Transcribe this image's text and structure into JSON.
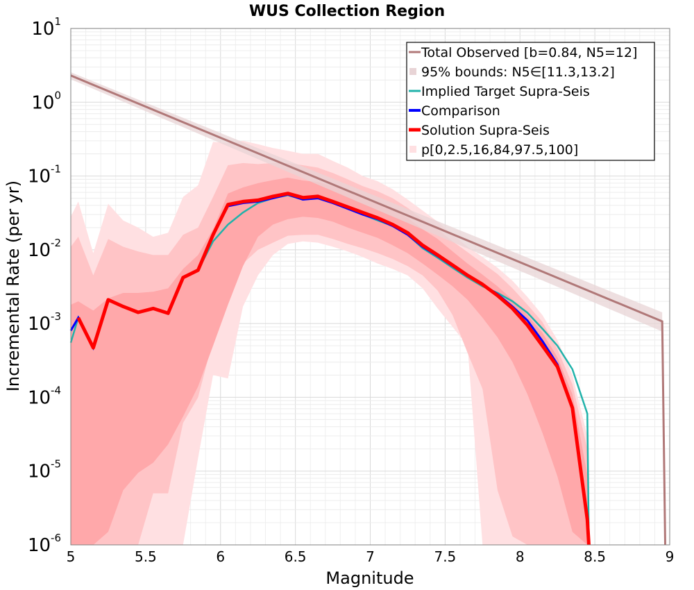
{
  "chart_data": {
    "type": "line",
    "title": "WUS Collection Region",
    "xlabel": "Magnitude",
    "ylabel": "Incremental Rate (per yr)",
    "xlim": [
      5,
      9
    ],
    "ylim": [
      1e-06,
      10
    ],
    "yscale": "log",
    "grid": true,
    "legend_position": "top-right",
    "x_ticks": [
      "5",
      "5.5",
      "6",
      "6.5",
      "7",
      "7.5",
      "8",
      "8.5",
      "9"
    ],
    "y_ticks": [
      {
        "base": "10",
        "exp": "-6"
      },
      {
        "base": "10",
        "exp": "-5"
      },
      {
        "base": "10",
        "exp": "-4"
      },
      {
        "base": "10",
        "exp": "-3"
      },
      {
        "base": "10",
        "exp": "-2"
      },
      {
        "base": "10",
        "exp": "-1"
      },
      {
        "base": "10",
        "exp": "0"
      },
      {
        "base": "10",
        "exp": "1"
      }
    ],
    "colors": {
      "observed": "#b07878",
      "observed_band": "#e8d4d6",
      "target": "#20b2aa",
      "comparison": "#0000ff",
      "solution": "#ff0000",
      "band_outer": "#ffe0e2",
      "band_mid": "#ffc4c6",
      "band_inner": "#ffa8aa"
    },
    "legend": [
      {
        "label": "Total Observed [b=0.84, N5=12]",
        "kind": "line",
        "key": "observed"
      },
      {
        "label": "95% bounds: N5∈[11.3,13.2]",
        "kind": "band",
        "key": "observed_band"
      },
      {
        "label": "Implied Target Supra-Seis",
        "kind": "line",
        "key": "target"
      },
      {
        "label": "Comparison",
        "kind": "line",
        "key": "comparison"
      },
      {
        "label": "Solution Supra-Seis",
        "kind": "line",
        "key": "solution"
      },
      {
        "label": "p[0,2.5,16,84,97.5,100]",
        "kind": "band",
        "key": "band_outer"
      }
    ],
    "series": [
      {
        "name": "Total Observed [b=0.84, N5=12]",
        "x": [
          5.0,
          8.95,
          8.95,
          8.97
        ],
        "y": [
          2.3,
          0.00107,
          0.00107,
          1e-06
        ]
      },
      {
        "name": "95% bounds: N5∈[11.3,13.2]",
        "x": [
          5.0,
          8.95
        ],
        "lower": [
          2.05,
          0.00078
        ],
        "upper": [
          2.55,
          0.00142
        ]
      },
      {
        "name": "Implied Target Supra-Seis",
        "x": [
          5.0,
          5.05,
          5.15,
          5.25,
          5.35,
          5.45,
          5.55,
          5.65,
          5.75,
          5.85,
          5.95,
          6.05,
          6.15,
          6.25,
          6.35,
          6.45,
          6.55,
          6.65,
          6.75,
          6.85,
          6.95,
          7.05,
          7.15,
          7.25,
          7.35,
          7.45,
          7.55,
          7.65,
          7.75,
          7.85,
          7.95,
          8.05,
          8.15,
          8.25,
          8.35,
          8.45,
          8.46
        ],
        "y": [
          0.00055,
          0.0012,
          0.00047,
          0.0021,
          0.0017,
          0.00142,
          0.0016,
          0.00138,
          0.0042,
          0.0053,
          0.013,
          0.022,
          0.032,
          0.043,
          0.05,
          0.055,
          0.048,
          0.05,
          0.043,
          0.036,
          0.03,
          0.025,
          0.021,
          0.016,
          0.0105,
          0.0078,
          0.0057,
          0.0042,
          0.0032,
          0.0026,
          0.002,
          0.0014,
          0.00085,
          0.0005,
          0.00024,
          6e-05,
          1e-06
        ]
      },
      {
        "name": "Comparison",
        "x": [
          5.0,
          5.05,
          5.15,
          5.25,
          5.35,
          5.45,
          5.55,
          5.65,
          5.75,
          5.85,
          5.95,
          6.05,
          6.15,
          6.25,
          6.35,
          6.45,
          6.55,
          6.65,
          6.75,
          6.85,
          6.95,
          7.05,
          7.15,
          7.25,
          7.35,
          7.45,
          7.55,
          7.65,
          7.75,
          7.85,
          7.95,
          8.05,
          8.15,
          8.25,
          8.35,
          8.45,
          8.46
        ],
        "y": [
          0.0008,
          0.0012,
          0.00047,
          0.0021,
          0.0017,
          0.00142,
          0.0016,
          0.00138,
          0.0042,
          0.0053,
          0.016,
          0.039,
          0.043,
          0.045,
          0.05,
          0.056,
          0.048,
          0.05,
          0.043,
          0.036,
          0.03,
          0.026,
          0.021,
          0.016,
          0.011,
          0.0082,
          0.006,
          0.0044,
          0.0034,
          0.0025,
          0.0017,
          0.0011,
          0.00058,
          0.00028,
          7.5e-05,
          2.2e-06,
          1e-06
        ]
      },
      {
        "name": "Solution Supra-Seis",
        "x": [
          5.05,
          5.15,
          5.25,
          5.35,
          5.45,
          5.55,
          5.65,
          5.75,
          5.85,
          5.95,
          6.05,
          6.15,
          6.25,
          6.35,
          6.45,
          6.55,
          6.65,
          6.75,
          6.85,
          6.95,
          7.05,
          7.15,
          7.25,
          7.35,
          7.45,
          7.55,
          7.65,
          7.75,
          7.85,
          7.95,
          8.05,
          8.15,
          8.25,
          8.35,
          8.45,
          8.46
        ],
        "y": [
          0.0012,
          0.00047,
          0.0021,
          0.0017,
          0.00142,
          0.0016,
          0.00138,
          0.0042,
          0.0053,
          0.016,
          0.041,
          0.045,
          0.047,
          0.053,
          0.058,
          0.051,
          0.053,
          0.045,
          0.038,
          0.032,
          0.027,
          0.022,
          0.017,
          0.0115,
          0.0085,
          0.0062,
          0.0045,
          0.0034,
          0.0024,
          0.0016,
          0.00095,
          0.0005,
          0.00026,
          7.2e-05,
          2.2e-06,
          1e-06
        ]
      },
      {
        "name": "p[0,2.5,16,84,97.5,100]",
        "x": [
          5.0,
          5.05,
          5.15,
          5.25,
          5.35,
          5.45,
          5.55,
          5.65,
          5.75,
          5.85,
          5.95,
          6.05,
          6.15,
          6.25,
          6.35,
          6.45,
          6.55,
          6.65,
          6.75,
          6.85,
          6.95,
          7.05,
          7.15,
          7.25,
          7.35,
          7.45,
          7.55,
          7.65,
          7.75,
          7.85,
          7.95,
          8.05,
          8.15,
          8.25,
          8.35,
          8.45
        ],
        "p0": [
          1e-06,
          1e-06,
          1e-06,
          1e-06,
          1e-06,
          1e-06,
          1e-06,
          1e-06,
          1e-06,
          1.5e-05,
          0.0002,
          0.00018,
          0.0017,
          0.0045,
          0.0085,
          0.012,
          0.013,
          0.0125,
          0.011,
          0.0095,
          0.008,
          0.0065,
          0.0055,
          0.0045,
          0.003,
          0.0016,
          0.0009,
          0.0005,
          1e-06,
          1e-06,
          1e-06,
          1e-06,
          1e-06,
          1e-06,
          1e-06,
          1e-06
        ],
        "p2_5": [
          1e-06,
          1e-06,
          1e-06,
          1e-06,
          1e-06,
          1e-06,
          5e-06,
          5e-06,
          4.5e-05,
          0.0001,
          0.0006,
          0.0025,
          0.0065,
          0.01,
          0.0125,
          0.0155,
          0.016,
          0.016,
          0.014,
          0.012,
          0.0105,
          0.009,
          0.0075,
          0.006,
          0.0045,
          0.0028,
          0.0013,
          0.0004,
          0.00013,
          5.5e-06,
          1.3e-06,
          1e-06,
          1e-06,
          1e-06,
          1e-06,
          1e-06
        ],
        "p16": [
          1e-06,
          1e-06,
          1e-06,
          1.5e-06,
          5.5e-06,
          9.5e-06,
          1.3e-05,
          2.3e-05,
          5.5e-05,
          0.00014,
          0.0005,
          0.0018,
          0.006,
          0.015,
          0.022,
          0.026,
          0.028,
          0.027,
          0.024,
          0.02,
          0.017,
          0.0145,
          0.0115,
          0.009,
          0.0065,
          0.0046,
          0.0032,
          0.0021,
          0.0012,
          0.00065,
          0.0003,
          0.00011,
          3.3e-05,
          8.5e-06,
          1.5e-06,
          1e-06
        ],
        "p84": [
          0.0018,
          0.002,
          0.0015,
          0.0022,
          0.0026,
          0.0026,
          0.0027,
          0.003,
          0.0055,
          0.0085,
          0.019,
          0.058,
          0.07,
          0.08,
          0.088,
          0.095,
          0.087,
          0.083,
          0.073,
          0.061,
          0.051,
          0.044,
          0.036,
          0.027,
          0.019,
          0.014,
          0.0095,
          0.0065,
          0.0046,
          0.0032,
          0.0021,
          0.0013,
          0.00075,
          0.00035,
          0.00011,
          9e-06
        ],
        "p97_5": [
          0.011,
          0.015,
          0.0045,
          0.014,
          0.011,
          0.0095,
          0.0085,
          0.0085,
          0.016,
          0.02,
          0.052,
          0.14,
          0.15,
          0.145,
          0.15,
          0.15,
          0.14,
          0.13,
          0.11,
          0.09,
          0.073,
          0.062,
          0.05,
          0.037,
          0.026,
          0.019,
          0.013,
          0.0093,
          0.0066,
          0.0047,
          0.003,
          0.0018,
          0.00105,
          0.00045,
          0.00015,
          2e-05
        ],
        "p100": [
          0.028,
          0.045,
          0.009,
          0.042,
          0.025,
          0.02,
          0.015,
          0.017,
          0.052,
          0.075,
          0.29,
          0.28,
          0.3,
          0.27,
          0.24,
          0.22,
          0.2,
          0.2,
          0.16,
          0.13,
          0.1,
          0.085,
          0.066,
          0.048,
          0.034,
          0.024,
          0.016,
          0.011,
          0.008,
          0.0057,
          0.0038,
          0.0023,
          0.0013,
          0.0006,
          0.0002,
          3e-05
        ]
      }
    ]
  }
}
